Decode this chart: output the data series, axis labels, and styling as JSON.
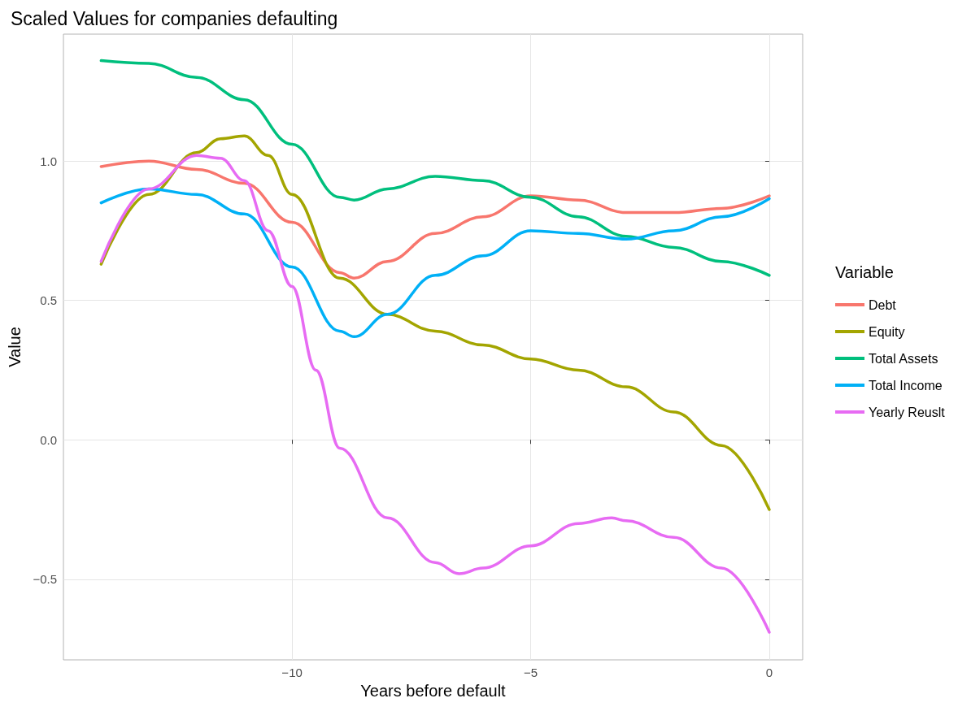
{
  "chart_data": {
    "type": "line",
    "title": "Scaled Values for companies defaulting",
    "xlabel": "Years before default",
    "ylabel": "Value",
    "legend_title": "Variable",
    "legend": "right",
    "grid": true,
    "marker": "none",
    "line_style": "solid",
    "xlim": [
      -14.79,
      0.7
    ],
    "xticks": [
      {
        "value": -10,
        "label": "−10"
      },
      {
        "value": -5,
        "label": "−5"
      },
      0
    ],
    "ylim": [
      -0.789,
      1.455
    ],
    "yticks": [
      {
        "value": -0.5,
        "label": "−0.5"
      },
      {
        "value": 0,
        "label": "0.0"
      },
      0.5,
      {
        "value": 1,
        "label": "1.0"
      }
    ],
    "series": [
      {
        "name": "Debt",
        "color": "#f8766d",
        "x": [
          -14,
          -13,
          -12,
          -11,
          -10,
          -9,
          -8.7,
          -8,
          -7,
          -6,
          -5,
          -4,
          -3,
          -2,
          -1,
          0
        ],
        "values": [
          0.98,
          1.0,
          0.97,
          0.92,
          0.78,
          0.6,
          0.58,
          0.64,
          0.74,
          0.8,
          0.875,
          0.86,
          0.815,
          0.815,
          0.83,
          0.875
        ]
      },
      {
        "name": "Equity",
        "color": "#a3a500",
        "x": [
          -14,
          -13,
          -12,
          -11.5,
          -11,
          -10.5,
          -10,
          -9,
          -8,
          -7,
          -6,
          -5,
          -4,
          -3,
          -2,
          -1,
          0
        ],
        "values": [
          0.63,
          0.88,
          1.03,
          1.08,
          1.09,
          1.02,
          0.88,
          0.58,
          0.45,
          0.39,
          0.34,
          0.29,
          0.25,
          0.19,
          0.1,
          -0.02,
          -0.25
        ]
      },
      {
        "name": "Total Assets",
        "color": "#00bf7d",
        "x": [
          -14,
          -13,
          -12,
          -11,
          -10,
          -9,
          -8.7,
          -8,
          -7,
          -6,
          -5,
          -4,
          -3,
          -2,
          -1,
          0
        ],
        "values": [
          1.36,
          1.35,
          1.3,
          1.22,
          1.06,
          0.87,
          0.86,
          0.9,
          0.945,
          0.93,
          0.87,
          0.8,
          0.73,
          0.69,
          0.64,
          0.59
        ]
      },
      {
        "name": "Total Income",
        "color": "#00b0f6",
        "x": [
          -14,
          -13,
          -12,
          -11,
          -10,
          -9,
          -8.7,
          -8,
          -7,
          -6,
          -5,
          -4,
          -3,
          -2,
          -1,
          0
        ],
        "values": [
          0.85,
          0.9,
          0.88,
          0.81,
          0.62,
          0.39,
          0.37,
          0.45,
          0.59,
          0.66,
          0.75,
          0.74,
          0.72,
          0.75,
          0.8,
          0.865
        ]
      },
      {
        "name": "Yearly Reuslt",
        "color": "#e76bf3",
        "x": [
          -14,
          -13,
          -12,
          -11.5,
          -11,
          -10.5,
          -10,
          -9.5,
          -9,
          -8,
          -7,
          -6.5,
          -6,
          -5,
          -4,
          -3.3,
          -3,
          -2,
          -1,
          0
        ],
        "values": [
          0.64,
          0.9,
          1.02,
          1.01,
          0.93,
          0.75,
          0.55,
          0.25,
          -0.03,
          -0.28,
          -0.44,
          -0.48,
          -0.46,
          -0.38,
          -0.3,
          -0.28,
          -0.29,
          -0.35,
          -0.46,
          -0.69
        ]
      }
    ]
  }
}
